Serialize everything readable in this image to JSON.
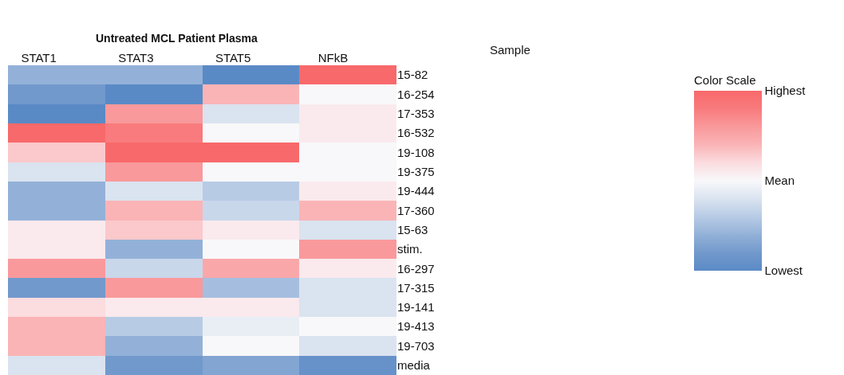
{
  "chart_data": {
    "type": "heatmap",
    "title": "Untreated MCL Patient Plasma",
    "ylabel": "Sample",
    "clabel": "Color Scale",
    "categories": [
      "STAT1",
      "STAT3",
      "STAT5",
      "NFkB"
    ],
    "y_categories": [
      "15-82",
      "16-254",
      "17-353",
      "16-532",
      "19-108",
      "19-375",
      "19-444",
      "17-360",
      "15-63",
      "stim.",
      "16-297",
      "17-315",
      "19-141",
      "19-413",
      "19-703",
      "media"
    ],
    "cells": [
      [
        -3,
        -3,
        -5,
        5
      ],
      [
        -4,
        -5,
        2,
        0
      ],
      [
        -5,
        3,
        -1,
        0.5
      ],
      [
        5,
        4,
        0,
        0.5
      ],
      [
        1.5,
        5,
        5,
        0
      ],
      [
        -1,
        3,
        0,
        0
      ],
      [
        -3,
        -1,
        -2,
        0.5
      ],
      [
        -3,
        2,
        -1.5,
        2
      ],
      [
        0.5,
        1.5,
        0.5,
        -1
      ],
      [
        0.5,
        -3,
        0,
        3
      ],
      [
        3,
        -1.5,
        2.5,
        0.5
      ],
      [
        -4,
        3,
        -2.5,
        -1
      ],
      [
        1,
        0.5,
        0.5,
        -1
      ],
      [
        2,
        -2,
        -0.5,
        0
      ],
      [
        2,
        -3,
        0,
        -1
      ],
      [
        -1,
        -4,
        -3.5,
        -4.5
      ]
    ],
    "clim": [
      -5,
      5
    ],
    "cticks": [
      {
        "value": 5,
        "label": "Highest"
      },
      {
        "value": 0,
        "label": "Mean"
      },
      {
        "value": -5,
        "label": "Lowest"
      }
    ],
    "colors": [
      "#5a8ac6",
      "#7299cc",
      "#93b1d8",
      "#b7cbe5",
      "#dae3f0",
      "#f8f8fa",
      "#fbdcdf",
      "#fab4b6",
      "#f9999b",
      "#f97b7d",
      "#f8696b"
    ]
  }
}
